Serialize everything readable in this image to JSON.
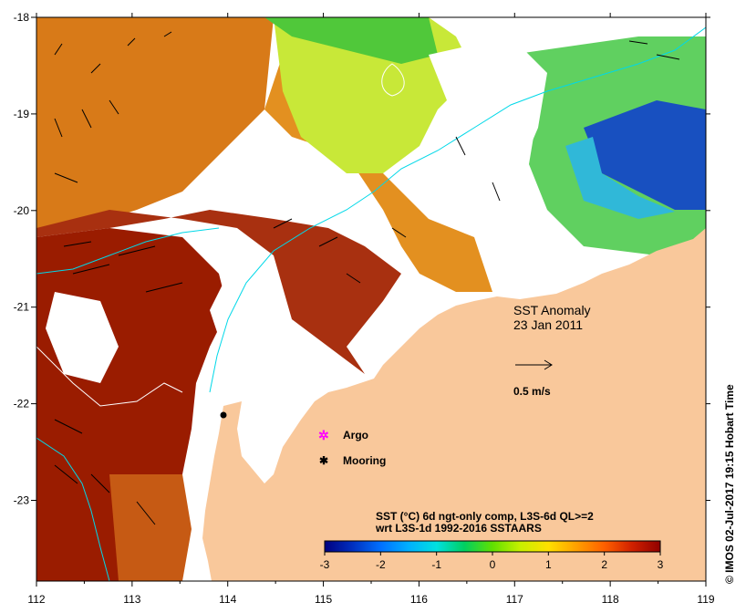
{
  "map": {
    "title": "SST Anomaly",
    "date": "23 Jan 2011",
    "scale_label": "0.5 m/s",
    "legend": {
      "argo_label": "Argo",
      "mooring_label": "Mooring"
    },
    "colorbar": {
      "line1": "SST (°C) 6d ngt-only comp, L3S-6d QL>=2",
      "line2": "wrt L3S-1d 1992-2016 SSTAARS",
      "ticks": [
        "-3",
        "-2",
        "-1",
        "0",
        "1",
        "2",
        "3"
      ],
      "colors": [
        "#000080",
        "#0030c0",
        "#0070ff",
        "#00b0ff",
        "#00e0e0",
        "#00d060",
        "#60e000",
        "#c8f000",
        "#ffe000",
        "#ffa000",
        "#ff6000",
        "#d02000",
        "#900000"
      ]
    },
    "x_ticks": [
      "112",
      "113",
      "114",
      "115",
      "116",
      "117",
      "118",
      "119"
    ],
    "y_ticks": [
      "-18",
      "-19",
      "-20",
      "-21",
      "-22",
      "-23"
    ],
    "credit": "© IMOS 02-Jul-2017 19:15 Hobart Time",
    "colors": {
      "land": "#f9c89b",
      "warm": "#e08a10",
      "hot": "#a02000",
      "cool": "#c8e840",
      "cold": "#1040c0",
      "current": "#00d8e8"
    }
  }
}
